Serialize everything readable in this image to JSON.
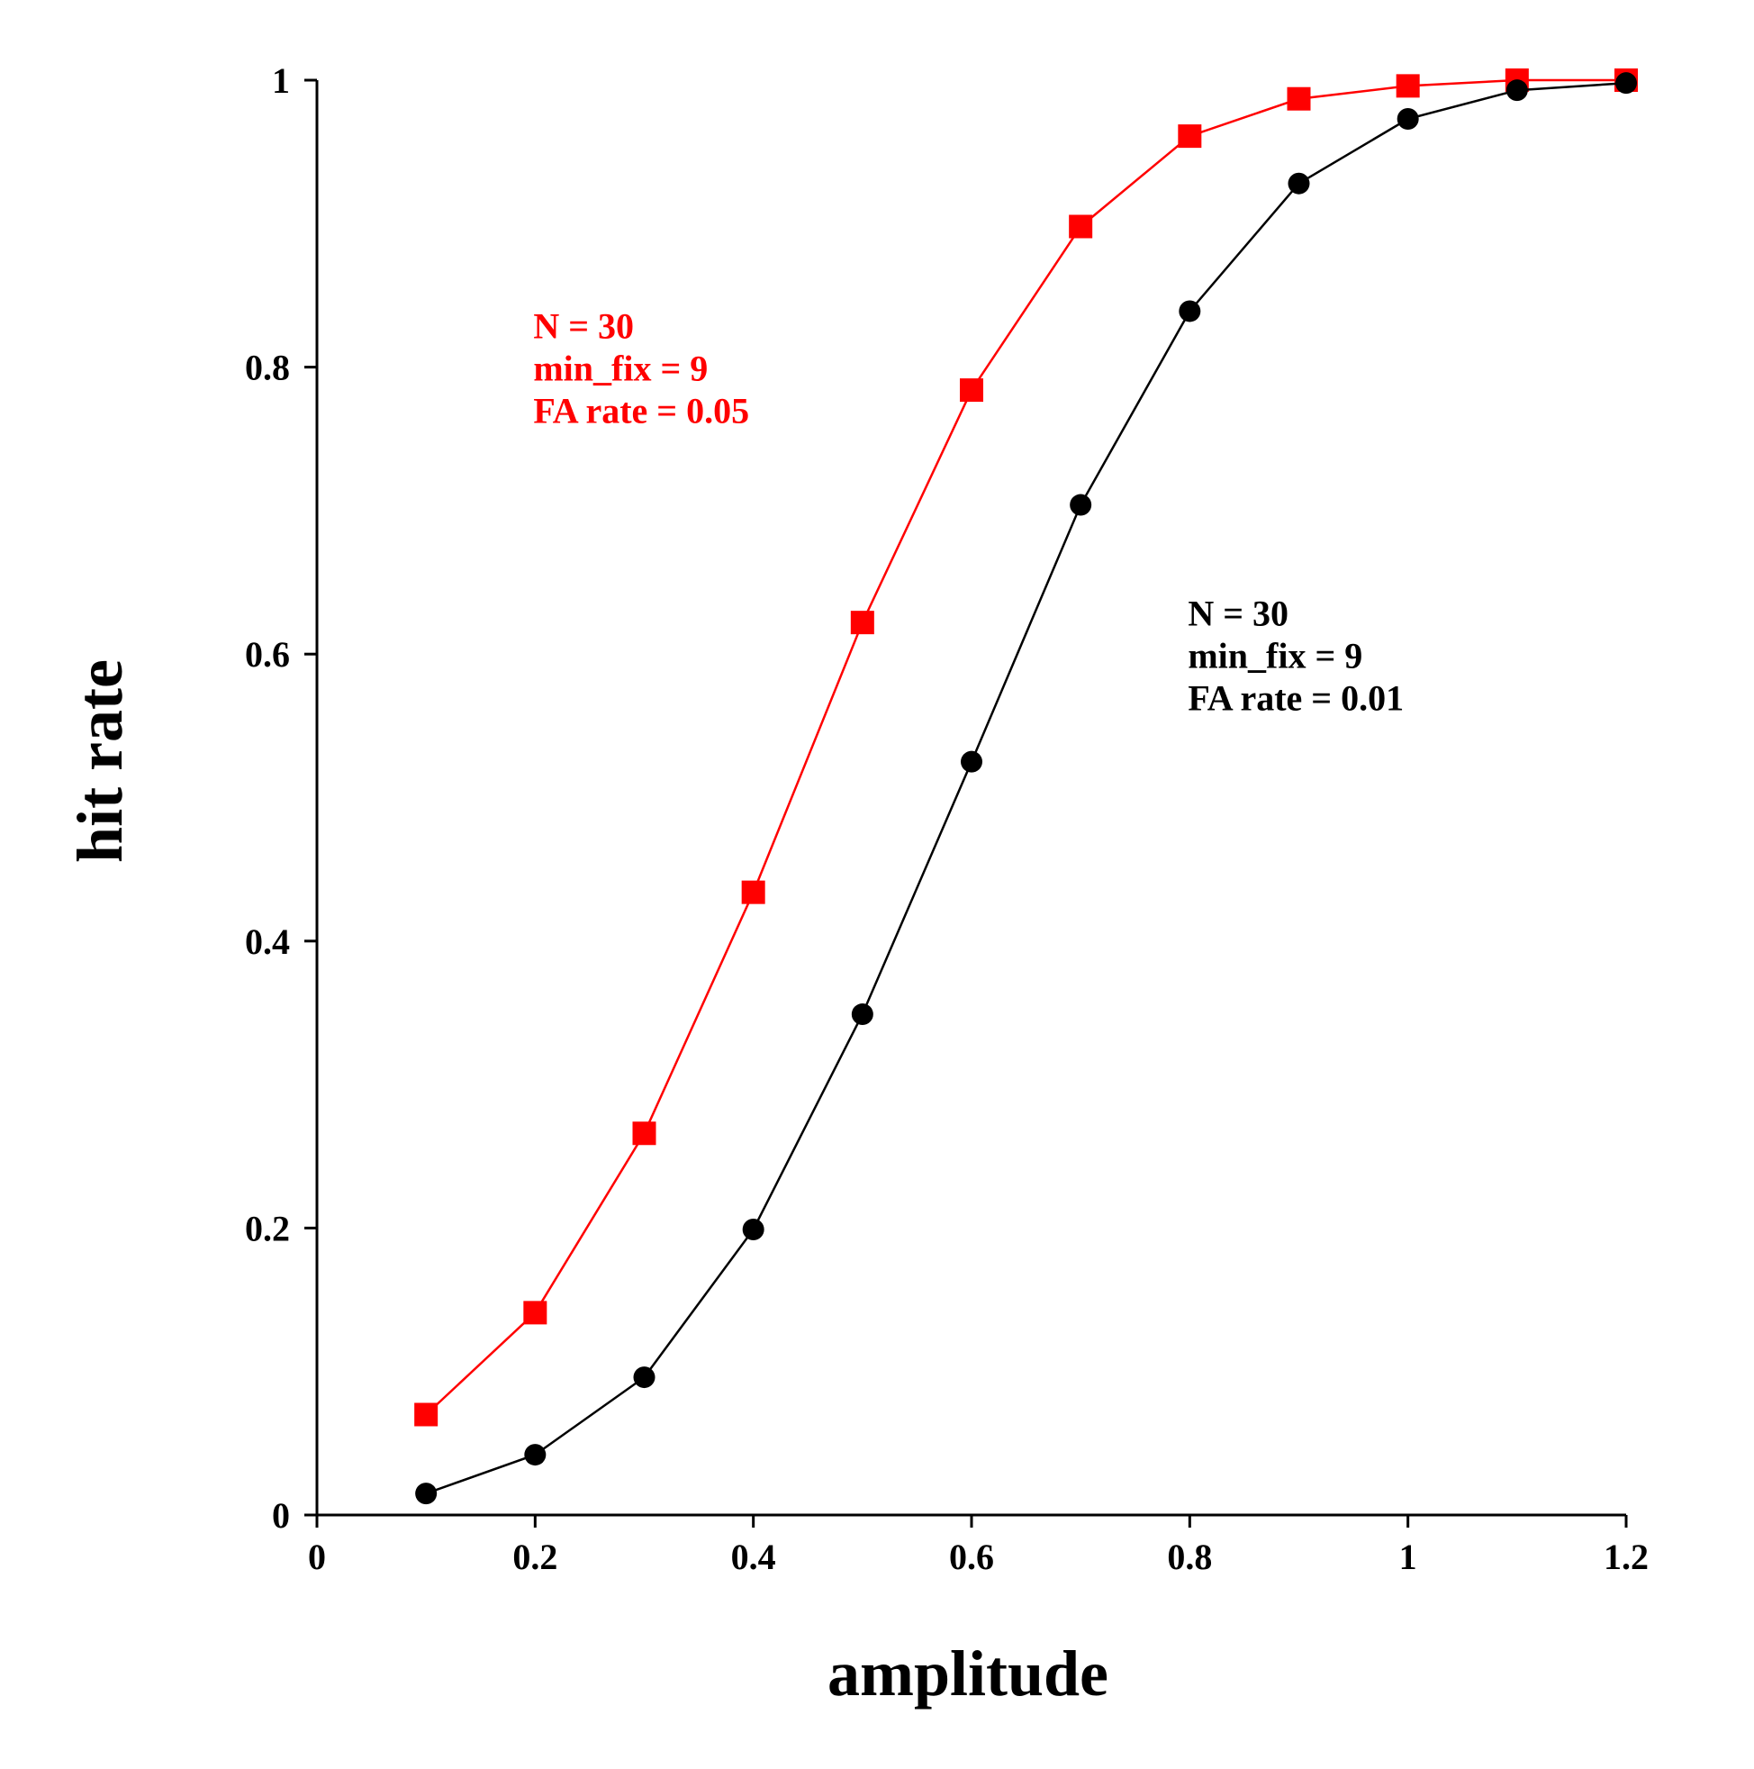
{
  "chart_data": {
    "type": "line",
    "xlabel": "amplitude",
    "ylabel": "hit rate",
    "xlim": [
      0,
      1.2
    ],
    "ylim": [
      0,
      1
    ],
    "xticks": [
      0,
      0.2,
      0.4,
      0.6,
      0.8,
      1,
      1.2
    ],
    "xtick_labels": [
      "0",
      "0.2",
      "0.4",
      "0.6",
      "0.8",
      "1",
      "1.2"
    ],
    "yticks": [
      0,
      0.2,
      0.4,
      0.6,
      0.8,
      1
    ],
    "ytick_labels": [
      "0",
      "0.2",
      "0.4",
      "0.6",
      "0.8",
      "1"
    ],
    "grid": false,
    "series": [
      {
        "color": "#ff0000",
        "marker": "square",
        "x": [
          0.1,
          0.2,
          0.3,
          0.4,
          0.5,
          0.6,
          0.7,
          0.8,
          0.9,
          1.0,
          1.1,
          1.2
        ],
        "y": [
          0.07,
          0.141,
          0.266,
          0.434,
          0.622,
          0.784,
          0.898,
          0.961,
          0.987,
          0.996,
          1.0,
          1.0
        ]
      },
      {
        "color": "#000000",
        "marker": "circle",
        "x": [
          0.1,
          0.2,
          0.3,
          0.4,
          0.5,
          0.6,
          0.7,
          0.8,
          0.9,
          1.0,
          1.1,
          1.2
        ],
        "y": [
          0.015,
          0.042,
          0.096,
          0.199,
          0.349,
          0.525,
          0.704,
          0.839,
          0.928,
          0.973,
          0.993,
          0.998
        ]
      }
    ],
    "annotations": [
      {
        "color": "#ff0000",
        "lines": [
          "N = 30",
          "min_fix = 9",
          "FA rate = 0.05"
        ],
        "at": [
          0.2,
          0.82
        ]
      },
      {
        "color": "#000000",
        "lines": [
          "N = 30",
          "min_fix = 9",
          "FA rate = 0.01"
        ],
        "at": [
          0.8,
          0.62
        ]
      }
    ]
  }
}
